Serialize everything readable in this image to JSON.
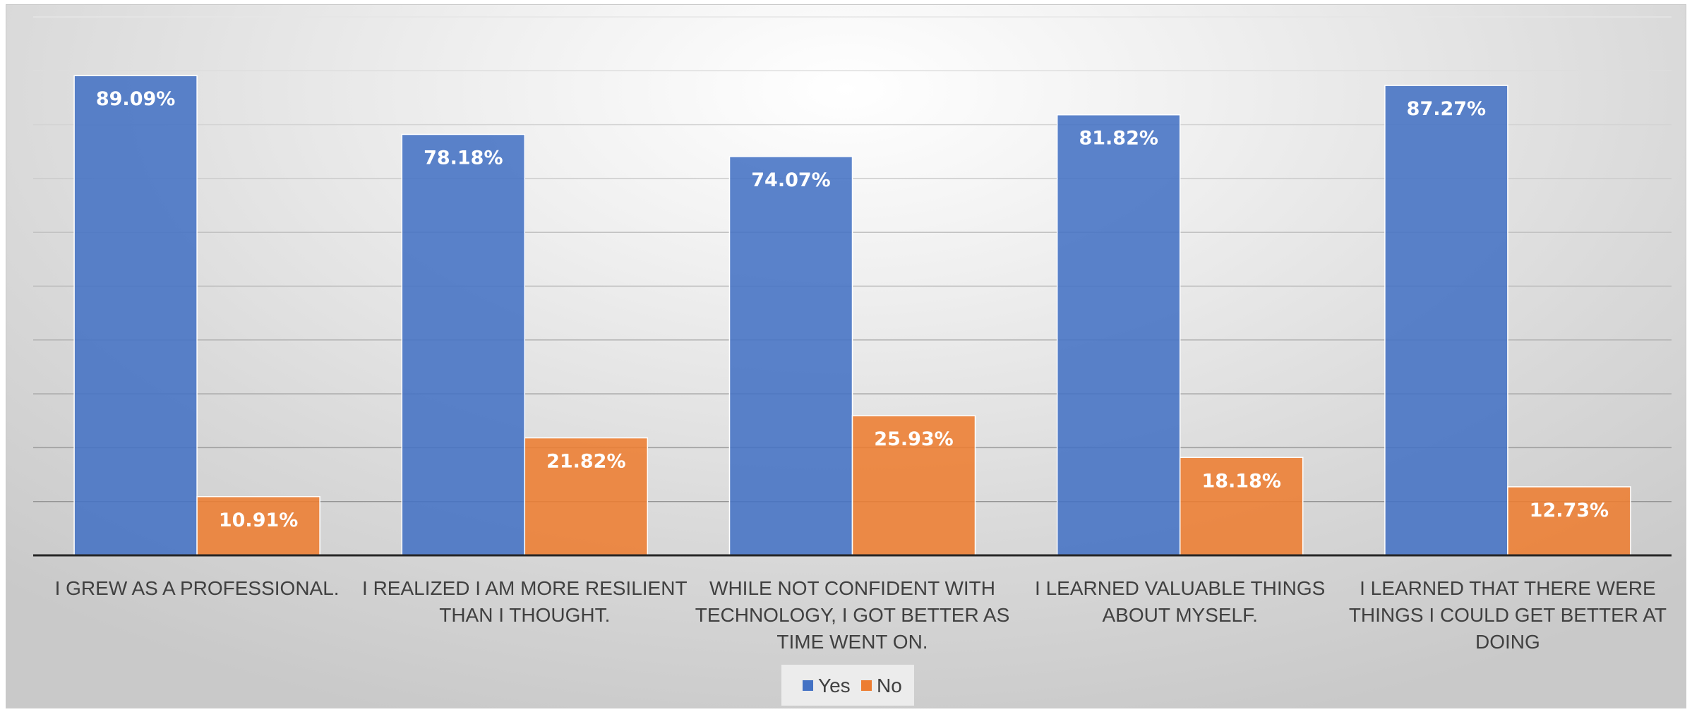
{
  "chart_data": {
    "type": "bar",
    "categories": [
      "I GREW AS A PROFESSIONAL.",
      "I REALIZED I AM MORE RESILIENT THAN I THOUGHT.",
      "WHILE NOT CONFIDENT WITH TECHNOLOGY, I GOT BETTER AS TIME WENT ON.",
      "I LEARNED VALUABLE THINGS ABOUT MYSELF.",
      "I LEARNED THAT THERE WERE THINGS I COULD GET BETTER AT DOING"
    ],
    "category_lines": [
      [
        "I GREW AS A PROFESSIONAL."
      ],
      [
        "I REALIZED I AM MORE RESILIENT",
        "THAN I THOUGHT."
      ],
      [
        "WHILE NOT CONFIDENT WITH",
        "TECHNOLOGY, I GOT BETTER AS",
        "TIME WENT ON."
      ],
      [
        "I LEARNED VALUABLE THINGS",
        "ABOUT MYSELF."
      ],
      [
        "I LEARNED THAT THERE WERE",
        "THINGS I COULD GET BETTER AT",
        "DOING"
      ]
    ],
    "series": [
      {
        "name": "Yes",
        "color": "#4472c4",
        "values": [
          89.09,
          78.18,
          74.07,
          81.82,
          87.27
        ],
        "labels": [
          "89.09%",
          "78.18%",
          "74.07%",
          "81.82%",
          "87.27%"
        ]
      },
      {
        "name": "No",
        "color": "#ed7d31",
        "values": [
          10.91,
          21.82,
          25.93,
          18.18,
          12.73
        ],
        "labels": [
          "10.91%",
          "21.82%",
          "25.93%",
          "18.18%",
          "12.73%"
        ]
      }
    ],
    "ylim": [
      0,
      100
    ],
    "y_gridline_step": 10,
    "grid": true,
    "legend_position": "bottom",
    "title": "",
    "xlabel": "",
    "ylabel": ""
  }
}
